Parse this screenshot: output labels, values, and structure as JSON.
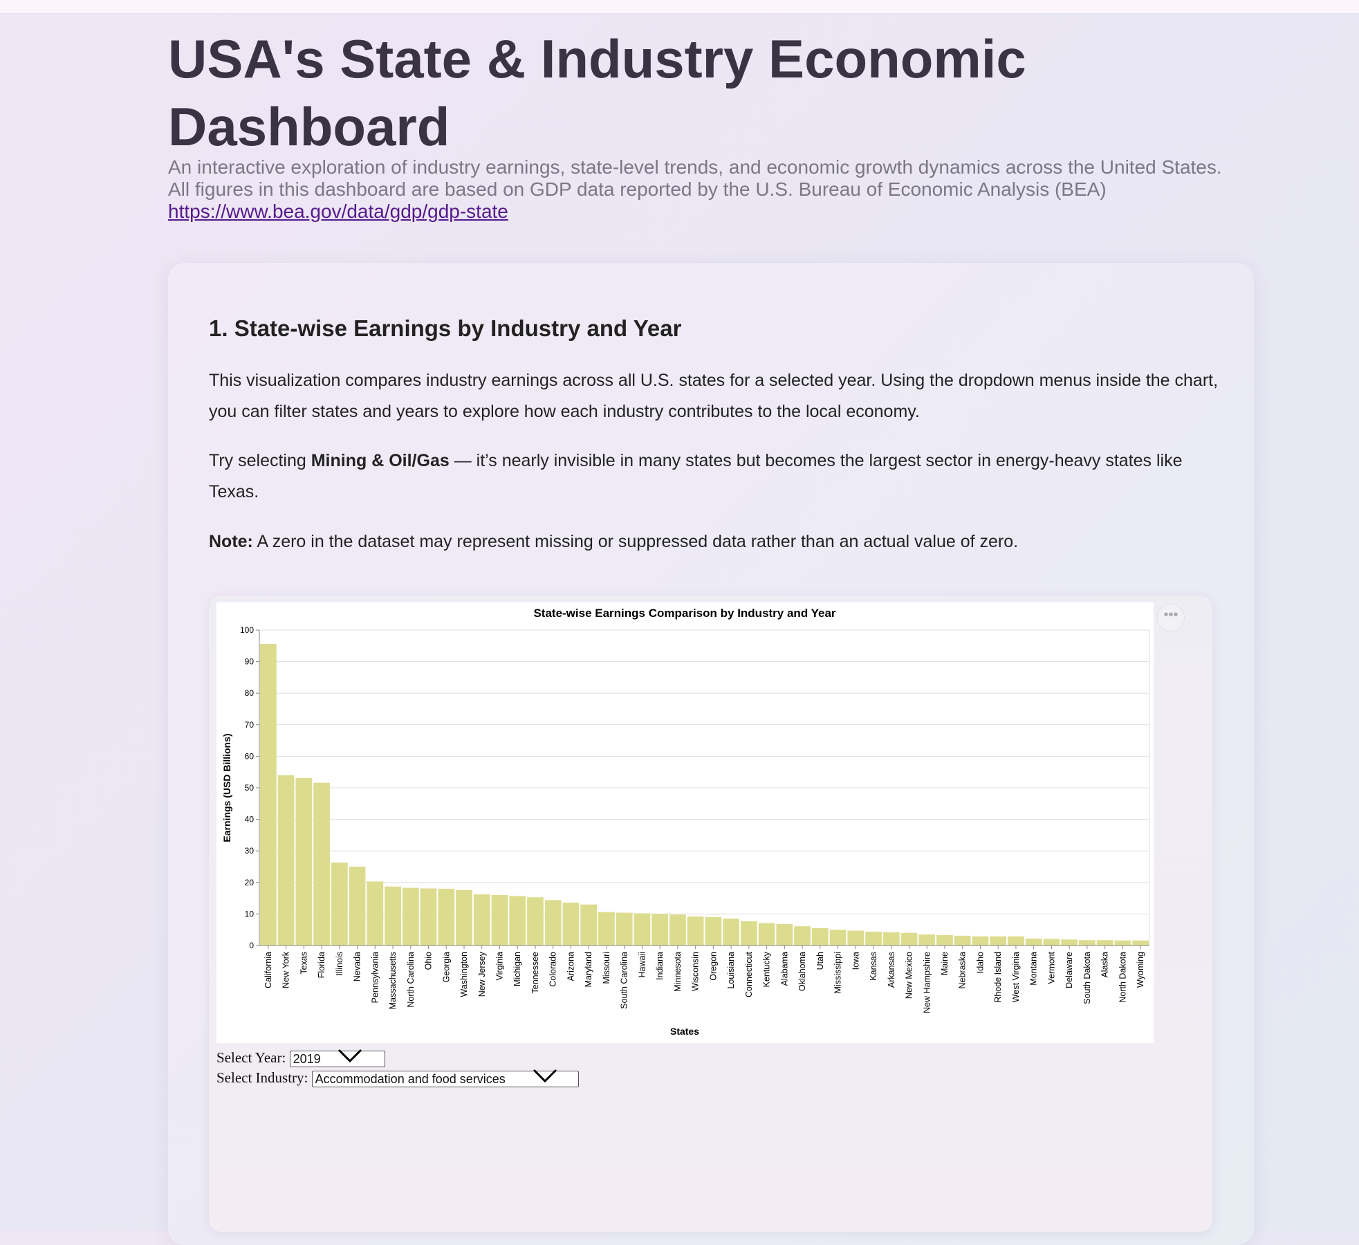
{
  "header": {
    "title": "USA's State & Industry Economic Dashboard",
    "subtitle_line1": "An interactive exploration of industry earnings, state-level trends, and economic growth dynamics across the United States.",
    "subtitle_line2": "All figures in this dashboard are based on GDP data reported by the U.S. Bureau of Economic Analysis (BEA)",
    "link": "https://www.bea.gov/data/gdp/gdp-state"
  },
  "section": {
    "heading": "1. State-wise Earnings by Industry and Year",
    "para1": "This visualization compares industry earnings across all U.S. states for a selected year. Using the dropdown menus inside the chart, you can filter states and years to explore how each industry contributes to the local economy.",
    "para2_pre": "Try selecting ",
    "para2_bold": "Mining & Oil/Gas",
    "para2_post": " — it’s nearly invisible in many states but becomes the largest sector in energy-heavy states like Texas.",
    "note_label": "Note:",
    "note_text": " A zero in the dataset may represent missing or suppressed data rather than an actual value of zero."
  },
  "controls": {
    "year_label": "Select Year:",
    "year_value": "2019",
    "industry_label": "Select Industry:",
    "industry_value": "Accommodation and food services",
    "menu_icon": "ellipsis-icon"
  },
  "chart_data": {
    "type": "bar",
    "title": "State-wise Earnings Comparison by Industry and Year",
    "xlabel": "States",
    "ylabel": "Earnings (USD Billions)",
    "ylim": [
      0,
      100
    ],
    "yticks": [
      0,
      10,
      20,
      30,
      40,
      50,
      60,
      70,
      80,
      90,
      100
    ],
    "grid": true,
    "bar_color": "#dcdc8e",
    "categories": [
      "California",
      "New York",
      "Texas",
      "Florida",
      "Illinois",
      "Nevada",
      "Pennsylvania",
      "Massachusetts",
      "North Carolina",
      "Ohio",
      "Georgia",
      "Washington",
      "New Jersey",
      "Virginia",
      "Michigan",
      "Tennessee",
      "Colorado",
      "Arizona",
      "Maryland",
      "Missouri",
      "South Carolina",
      "Hawaii",
      "Indiana",
      "Minnesota",
      "Wisconsin",
      "Oregon",
      "Louisiana",
      "Connecticut",
      "Kentucky",
      "Alabama",
      "Oklahoma",
      "Utah",
      "Mississippi",
      "Iowa",
      "Kansas",
      "Arkansas",
      "New Mexico",
      "New Hampshire",
      "Maine",
      "Nebraska",
      "Idaho",
      "Rhode Island",
      "West Virginia",
      "Montana",
      "Vermont",
      "Delaware",
      "South Dakota",
      "Alaska",
      "North Dakota",
      "Wyoming"
    ],
    "values": [
      95.6,
      54.0,
      53.1,
      51.6,
      26.3,
      25.0,
      20.3,
      18.7,
      18.3,
      18.1,
      18.0,
      17.6,
      16.2,
      16.0,
      15.7,
      15.3,
      14.4,
      13.6,
      13.0,
      10.6,
      10.4,
      10.2,
      10.0,
      9.8,
      9.2,
      9.0,
      8.5,
      7.7,
      7.1,
      6.8,
      6.1,
      5.5,
      5.0,
      4.7,
      4.4,
      4.2,
      4.0,
      3.5,
      3.3,
      3.1,
      2.9,
      2.9,
      2.9,
      2.2,
      2.1,
      1.9,
      1.7,
      1.7,
      1.6,
      1.6
    ]
  }
}
